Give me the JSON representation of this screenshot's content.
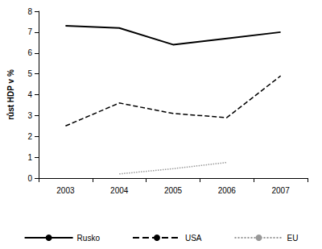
{
  "chart_data": {
    "type": "line",
    "ylabel": "růst HDP v %",
    "categories": [
      "2003",
      "2004",
      "2005",
      "2006",
      "2007"
    ],
    "series": [
      {
        "name": "Rusko",
        "color": "#000000",
        "line_style": "solid",
        "values": [
          7.3,
          7.2,
          6.4,
          6.7,
          7.0
        ]
      },
      {
        "name": "USA",
        "color": "#000000",
        "line_style": "dashed",
        "values": [
          2.5,
          3.6,
          3.1,
          2.9,
          4.9
        ]
      },
      {
        "name": "EU",
        "color": "#999999",
        "line_style": "dotted",
        "values": [
          null,
          0.2,
          0.45,
          0.75,
          null
        ]
      }
    ],
    "ylim": [
      0,
      8
    ],
    "yticks": [
      0,
      1,
      2,
      3,
      4,
      5,
      6,
      7,
      8
    ],
    "grid": false,
    "legend": "bottom"
  }
}
